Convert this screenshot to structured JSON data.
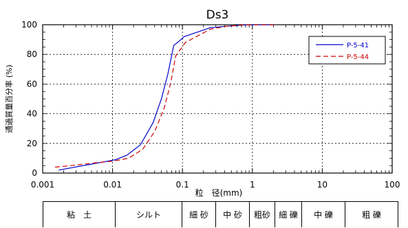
{
  "chart_data": {
    "type": "line",
    "title": "Ds3",
    "xlabel": "粒　径(mm)",
    "ylabel": "通過質量百分率 (%)",
    "xscale": "log",
    "xlim": [
      0.001,
      100
    ],
    "ylim": [
      0,
      100
    ],
    "xticks": [
      "0.001",
      "0.01",
      "0.1",
      "1",
      "10",
      "100"
    ],
    "yticks": [
      "0",
      "20",
      "40",
      "60",
      "80",
      "100"
    ],
    "grid": true,
    "legend_position": "top-right",
    "series": [
      {
        "name": "P-5-41",
        "color": "#0000cc",
        "style": "solid",
        "points": [
          [
            0.0017,
            2
          ],
          [
            0.005,
            6
          ],
          [
            0.011,
            9
          ],
          [
            0.016,
            12
          ],
          [
            0.025,
            19
          ],
          [
            0.038,
            34
          ],
          [
            0.05,
            50
          ],
          [
            0.062,
            67
          ],
          [
            0.075,
            86
          ],
          [
            0.085,
            88
          ],
          [
            0.106,
            92
          ],
          [
            0.25,
            98
          ],
          [
            0.425,
            99
          ],
          [
            0.85,
            100
          ],
          [
            2.0,
            100
          ]
        ]
      },
      {
        "name": "P-5-44",
        "color": "#cc0000",
        "style": "dashed",
        "points": [
          [
            0.0015,
            4
          ],
          [
            0.0025,
            5
          ],
          [
            0.006,
            7
          ],
          [
            0.01,
            8
          ],
          [
            0.017,
            10
          ],
          [
            0.027,
            16
          ],
          [
            0.04,
            28
          ],
          [
            0.055,
            44
          ],
          [
            0.068,
            61
          ],
          [
            0.08,
            79
          ],
          [
            0.11,
            88
          ],
          [
            0.25,
            97
          ],
          [
            0.43,
            99
          ],
          [
            0.85,
            100
          ],
          [
            2.0,
            100
          ]
        ]
      }
    ]
  },
  "soil_classes": [
    "粘　土",
    "シルト",
    "細 砂",
    "中 砂",
    "粗砂",
    "細 礫",
    "中 礫",
    "粗 礫"
  ]
}
